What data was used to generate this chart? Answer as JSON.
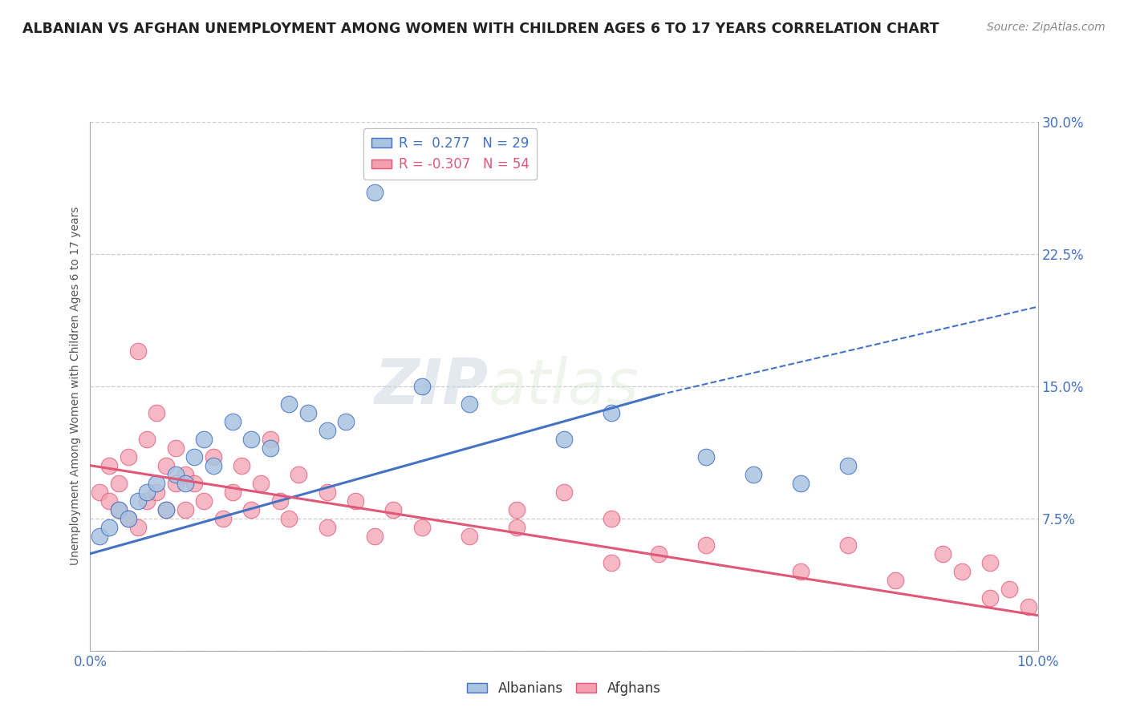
{
  "title": "ALBANIAN VS AFGHAN UNEMPLOYMENT AMONG WOMEN WITH CHILDREN AGES 6 TO 17 YEARS CORRELATION CHART",
  "source": "Source: ZipAtlas.com",
  "ylabel": "Unemployment Among Women with Children Ages 6 to 17 years",
  "xlim": [
    0.0,
    10.0
  ],
  "ylim": [
    0.0,
    30.0
  ],
  "xticks": [
    0.0,
    2.5,
    5.0,
    7.5,
    10.0
  ],
  "yticks": [
    0.0,
    7.5,
    15.0,
    22.5,
    30.0
  ],
  "xticklabels": [
    "0.0%",
    "",
    "",
    "",
    "10.0%"
  ],
  "yticklabels": [
    "",
    "7.5%",
    "15.0%",
    "22.5%",
    "30.0%"
  ],
  "albanian_R": 0.277,
  "albanian_N": 29,
  "afghan_R": -0.307,
  "afghan_N": 54,
  "albanian_color": "#a8c4e0",
  "afghan_color": "#f4a0b0",
  "albanian_line_color": "#4472c4",
  "afghan_line_color": "#e05878",
  "watermark_zip": "ZIP",
  "watermark_atlas": "atlas",
  "background_color": "#ffffff",
  "grid_color": "#cccccc",
  "albanian_x": [
    0.1,
    0.2,
    0.3,
    0.4,
    0.5,
    0.6,
    0.7,
    0.8,
    0.9,
    1.0,
    1.1,
    1.2,
    1.3,
    1.5,
    1.7,
    1.9,
    2.1,
    2.3,
    2.5,
    2.7,
    3.0,
    3.5,
    4.0,
    5.0,
    5.5,
    6.5,
    7.0,
    7.5,
    8.0
  ],
  "albanian_y": [
    6.5,
    7.0,
    8.0,
    7.5,
    8.5,
    9.0,
    9.5,
    8.0,
    10.0,
    9.5,
    11.0,
    12.0,
    10.5,
    13.0,
    12.0,
    11.5,
    14.0,
    13.5,
    12.5,
    13.0,
    26.0,
    15.0,
    14.0,
    12.0,
    13.5,
    11.0,
    10.0,
    9.5,
    10.5
  ],
  "afghan_x": [
    0.1,
    0.2,
    0.2,
    0.3,
    0.3,
    0.4,
    0.4,
    0.5,
    0.5,
    0.6,
    0.6,
    0.7,
    0.7,
    0.8,
    0.8,
    0.9,
    0.9,
    1.0,
    1.0,
    1.1,
    1.2,
    1.3,
    1.4,
    1.5,
    1.6,
    1.7,
    1.8,
    1.9,
    2.0,
    2.1,
    2.2,
    2.5,
    2.5,
    2.8,
    3.0,
    3.2,
    3.5,
    4.0,
    4.5,
    4.5,
    5.0,
    5.5,
    5.5,
    6.0,
    6.5,
    7.5,
    8.0,
    8.5,
    9.0,
    9.2,
    9.5,
    9.5,
    9.7,
    9.9
  ],
  "afghan_y": [
    9.0,
    8.5,
    10.5,
    8.0,
    9.5,
    7.5,
    11.0,
    7.0,
    17.0,
    8.5,
    12.0,
    9.0,
    13.5,
    8.0,
    10.5,
    9.5,
    11.5,
    8.0,
    10.0,
    9.5,
    8.5,
    11.0,
    7.5,
    9.0,
    10.5,
    8.0,
    9.5,
    12.0,
    8.5,
    7.5,
    10.0,
    9.0,
    7.0,
    8.5,
    6.5,
    8.0,
    7.0,
    6.5,
    8.0,
    7.0,
    9.0,
    5.0,
    7.5,
    5.5,
    6.0,
    4.5,
    6.0,
    4.0,
    5.5,
    4.5,
    3.0,
    5.0,
    3.5,
    2.5
  ]
}
